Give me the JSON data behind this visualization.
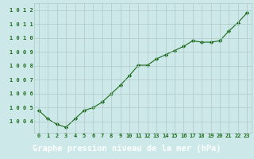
{
  "x": [
    0,
    1,
    2,
    3,
    4,
    5,
    6,
    7,
    8,
    9,
    10,
    11,
    12,
    13,
    14,
    15,
    16,
    17,
    18,
    19,
    20,
    21,
    22,
    23
  ],
  "y": [
    1004.8,
    1004.2,
    1003.8,
    1003.6,
    1004.2,
    1004.8,
    1005.0,
    1005.4,
    1006.0,
    1006.6,
    1007.3,
    1008.05,
    1008.05,
    1008.5,
    1008.8,
    1009.1,
    1009.4,
    1009.8,
    1009.7,
    1009.7,
    1009.8,
    1010.5,
    1011.1,
    1011.8
  ],
  "line_color": "#1a6b1a",
  "marker_color": "#1a6b1a",
  "bg_color": "#cce8e8",
  "footer_bg": "#2d6b2d",
  "grid_color": "#b0c8c8",
  "axis_label_color": "#ffffff",
  "tick_color": "#1a6b1a",
  "xlabel": "Graphe pression niveau de la mer (hPa)",
  "ylim": [
    1003.2,
    1012.5
  ],
  "xlim": [
    -0.5,
    23.5
  ],
  "yticks": [
    1004,
    1005,
    1006,
    1007,
    1008,
    1009,
    1010,
    1011,
    1012
  ],
  "xticks": [
    0,
    1,
    2,
    3,
    4,
    5,
    6,
    7,
    8,
    9,
    10,
    11,
    12,
    13,
    14,
    15,
    16,
    17,
    18,
    19,
    20,
    21,
    22,
    23
  ]
}
